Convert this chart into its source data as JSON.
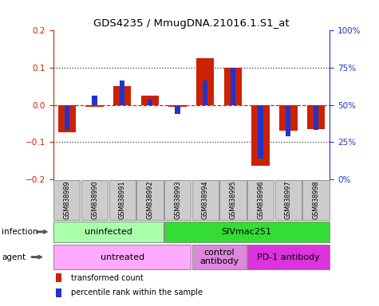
{
  "title": "GDS4235 / MmugDNA.21016.1.S1_at",
  "samples": [
    "GSM838989",
    "GSM838990",
    "GSM838991",
    "GSM838992",
    "GSM838993",
    "GSM838994",
    "GSM838995",
    "GSM838996",
    "GSM838997",
    "GSM838998"
  ],
  "red_values": [
    -0.075,
    -0.005,
    0.05,
    0.025,
    -0.005,
    0.125,
    0.1,
    -0.165,
    -0.07,
    -0.065
  ],
  "blue_values": [
    -0.068,
    0.025,
    0.065,
    0.015,
    -0.025,
    0.065,
    0.1,
    -0.145,
    -0.085,
    -0.068
  ],
  "ylim": [
    -0.2,
    0.2
  ],
  "y2lim": [
    0,
    100
  ],
  "yticks": [
    -0.2,
    -0.1,
    0.0,
    0.1,
    0.2
  ],
  "y2ticks": [
    0,
    25,
    50,
    75,
    100
  ],
  "y2ticklabels": [
    "0%",
    "25%",
    "50%",
    "75%",
    "100%"
  ],
  "red_color": "#cc2200",
  "blue_color": "#2233cc",
  "dashed_zero_color": "#cc2222",
  "dotted_color": "#333333",
  "infection_groups": [
    {
      "label": "uninfected",
      "start": 0,
      "end": 3,
      "color": "#aaffaa"
    },
    {
      "label": "SIVmac251",
      "start": 4,
      "end": 9,
      "color": "#33dd33"
    }
  ],
  "agent_groups": [
    {
      "label": "untreated",
      "start": 0,
      "end": 4,
      "color": "#ffaaff"
    },
    {
      "label": "control\nantibody",
      "start": 5,
      "end": 6,
      "color": "#dd88dd"
    },
    {
      "label": "PD-1 antibody",
      "start": 7,
      "end": 9,
      "color": "#dd33dd"
    }
  ],
  "infection_label": "infection",
  "agent_label": "agent",
  "legend_red": "transformed count",
  "legend_blue": "percentile rank within the sample",
  "plot_bg": "#ffffff",
  "sample_box_color": "#cccccc",
  "sample_box_edge": "#888888"
}
